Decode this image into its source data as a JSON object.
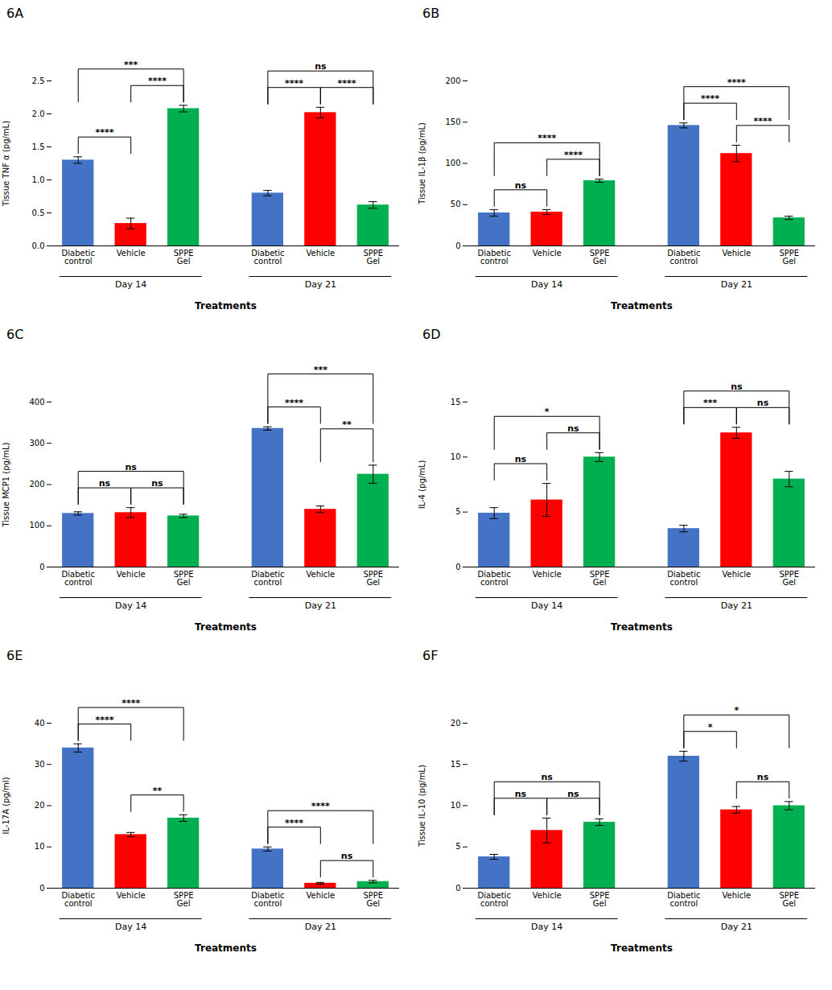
{
  "chart_data": [
    {
      "type": "bar",
      "title": "6A",
      "xlabel": "Treatments",
      "ylabel": "Tissue TNF α (pg/mL)",
      "categories": [
        "Diabetic control",
        "Vehicle",
        "SPPE Gel",
        "Diabetic control",
        "Vehicle",
        "SPPE Gel"
      ],
      "values": [
        1.3,
        0.34,
        2.08,
        0.8,
        2.02,
        0.62
      ],
      "errors": [
        0.05,
        0.08,
        0.05,
        0.04,
        0.08,
        0.05
      ],
      "colors": [
        "#4472C4",
        "#FF0000",
        "#00B050",
        "#4472C4",
        "#FF0000",
        "#00B050"
      ],
      "ylim": [
        0,
        2.5
      ],
      "yticks": [
        {
          "value": 0,
          "label": "0.0"
        },
        {
          "value": 0.5,
          "label": "0.5"
        },
        {
          "value": 1,
          "label": "1.0"
        },
        {
          "value": 1.5,
          "label": "1.5"
        },
        {
          "value": 2,
          "label": "2.0"
        },
        {
          "value": 2.5,
          "label": "2.5"
        }
      ],
      "grid": false,
      "groups": [
        {
          "label": "Day 14",
          "start": 0,
          "end": 2
        },
        {
          "label": "Day 21",
          "start": 3,
          "end": 5
        }
      ],
      "significance": [
        {
          "start": 0,
          "end": 1,
          "level": 1,
          "label": "****"
        },
        {
          "start": 1,
          "end": 2,
          "level": 1,
          "label": "****"
        },
        {
          "start": 0,
          "end": 2,
          "level": 2,
          "label": "***"
        },
        {
          "start": 3,
          "end": 4,
          "level": 1,
          "label": "****"
        },
        {
          "start": 4,
          "end": 5,
          "level": 1,
          "label": "****"
        },
        {
          "start": 3,
          "end": 5,
          "level": 2,
          "label": "ns"
        }
      ]
    },
    {
      "type": "bar",
      "title": "6B",
      "xlabel": "Treatments",
      "ylabel": "Tissue IL-1β (pg/mL)",
      "categories": [
        "Diabetic control",
        "Vehicle",
        "SPPE Gel",
        "Diabetic control",
        "Vehicle",
        "SPPE Gel"
      ],
      "values": [
        40,
        41,
        79,
        146,
        112,
        34
      ],
      "errors": [
        4,
        3,
        2,
        3,
        10,
        2
      ],
      "colors": [
        "#4472C4",
        "#FF0000",
        "#00B050",
        "#4472C4",
        "#FF0000",
        "#00B050"
      ],
      "ylim": [
        0,
        200
      ],
      "yticks": [
        0,
        50,
        100,
        150,
        200
      ],
      "grid": false,
      "groups": [
        {
          "label": "Day 14",
          "start": 0,
          "end": 2
        },
        {
          "label": "Day 21",
          "start": 3,
          "end": 5
        }
      ],
      "significance": [
        {
          "start": 0,
          "end": 1,
          "level": 1,
          "label": "ns"
        },
        {
          "start": 1,
          "end": 2,
          "level": 1,
          "label": "****"
        },
        {
          "start": 0,
          "end": 2,
          "level": 2,
          "label": "****"
        },
        {
          "start": 3,
          "end": 4,
          "level": 1,
          "label": "****"
        },
        {
          "start": 4,
          "end": 5,
          "level": 1,
          "label": "****"
        },
        {
          "start": 3,
          "end": 5,
          "level": 2,
          "label": "****"
        }
      ]
    },
    {
      "type": "bar",
      "title": "6C",
      "xlabel": "Treatments",
      "ylabel": "Tissue MCP1 (pg/mL)",
      "categories": [
        "Diabetic control",
        "Vehicle",
        "SPPE Gel",
        "Diabetic control",
        "Vehicle",
        "SPPE Gel"
      ],
      "values": [
        130,
        132,
        124,
        336,
        140,
        225
      ],
      "errors": [
        4,
        12,
        4,
        4,
        8,
        22
      ],
      "colors": [
        "#4472C4",
        "#FF0000",
        "#00B050",
        "#4472C4",
        "#FF0000",
        "#00B050"
      ],
      "ylim": [
        0,
        400
      ],
      "yticks": [
        0,
        100,
        200,
        300,
        400
      ],
      "grid": false,
      "groups": [
        {
          "label": "Day 14",
          "start": 0,
          "end": 2
        },
        {
          "label": "Day 21",
          "start": 3,
          "end": 5
        }
      ],
      "significance": [
        {
          "start": 0,
          "end": 1,
          "level": 1,
          "label": "ns"
        },
        {
          "start": 1,
          "end": 2,
          "level": 1,
          "label": "ns"
        },
        {
          "start": 0,
          "end": 2,
          "level": 2,
          "label": "ns"
        },
        {
          "start": 3,
          "end": 4,
          "level": 1,
          "label": "****"
        },
        {
          "start": 4,
          "end": 5,
          "level": 2,
          "label": "**"
        },
        {
          "start": 3,
          "end": 5,
          "level": 3,
          "label": "***"
        }
      ]
    },
    {
      "type": "bar",
      "title": "6D",
      "xlabel": "Treatments",
      "ylabel": "IL-4 (pg/mL)",
      "categories": [
        "Diabetic control",
        "Vehicle",
        "SPPE Gel",
        "Diabetic control",
        "Vehicle",
        "SPPE Gel"
      ],
      "values": [
        4.9,
        6.1,
        10.0,
        3.5,
        12.2,
        8.0
      ],
      "errors": [
        0.5,
        1.5,
        0.4,
        0.3,
        0.5,
        0.7
      ],
      "colors": [
        "#4472C4",
        "#FF0000",
        "#00B050",
        "#4472C4",
        "#FF0000",
        "#00B050"
      ],
      "ylim": [
        0,
        15
      ],
      "yticks": [
        0,
        5,
        10,
        15
      ],
      "grid": false,
      "groups": [
        {
          "label": "Day 14",
          "start": 0,
          "end": 2
        },
        {
          "label": "Day 21",
          "start": 3,
          "end": 5
        }
      ],
      "significance": [
        {
          "start": 0,
          "end": 1,
          "level": 1,
          "label": "ns"
        },
        {
          "start": 1,
          "end": 2,
          "level": 1,
          "label": "ns"
        },
        {
          "start": 0,
          "end": 2,
          "level": 2,
          "label": "*"
        },
        {
          "start": 3,
          "end": 4,
          "level": 1,
          "label": "***"
        },
        {
          "start": 4,
          "end": 5,
          "level": 1,
          "label": "ns"
        },
        {
          "start": 3,
          "end": 5,
          "level": 2,
          "label": "ns"
        }
      ]
    },
    {
      "type": "bar",
      "title": "6E",
      "xlabel": "Treatments",
      "ylabel": "IL-17A (pg/ml)",
      "categories": [
        "Diabetic control",
        "Vehicle",
        "SPPE Gel",
        "Diabetic control",
        "Vehicle",
        "SPPE Gel"
      ],
      "values": [
        34,
        13,
        17,
        9.5,
        1.2,
        1.6
      ],
      "errors": [
        1.0,
        0.5,
        0.8,
        0.5,
        0.2,
        0.3
      ],
      "colors": [
        "#4472C4",
        "#FF0000",
        "#00B050",
        "#4472C4",
        "#FF0000",
        "#00B050"
      ],
      "ylim": [
        0,
        40
      ],
      "yticks": [
        0,
        10,
        20,
        30,
        40
      ],
      "grid": false,
      "groups": [
        {
          "label": "Day 14",
          "start": 0,
          "end": 2
        },
        {
          "label": "Day 21",
          "start": 3,
          "end": 5
        }
      ],
      "significance": [
        {
          "start": 0,
          "end": 1,
          "level": 1,
          "label": "****"
        },
        {
          "start": 1,
          "end": 2,
          "level": 1,
          "label": "**"
        },
        {
          "start": 0,
          "end": 2,
          "level": 2,
          "label": "****"
        },
        {
          "start": 3,
          "end": 4,
          "level": 1,
          "label": "****"
        },
        {
          "start": 4,
          "end": 5,
          "level": 1,
          "label": "ns"
        },
        {
          "start": 3,
          "end": 5,
          "level": 2,
          "label": "****"
        }
      ]
    },
    {
      "type": "bar",
      "title": "6F",
      "xlabel": "Treatments",
      "ylabel": "Tissue IL-10 (pg/mL)",
      "categories": [
        "Diabetic control",
        "Vehicle",
        "SPPE Gel",
        "Diabetic control",
        "Vehicle",
        "SPPE Gel"
      ],
      "values": [
        3.8,
        7.0,
        8.0,
        16.0,
        9.5,
        10.0
      ],
      "errors": [
        0.3,
        1.5,
        0.4,
        0.6,
        0.4,
        0.5
      ],
      "colors": [
        "#4472C4",
        "#FF0000",
        "#00B050",
        "#4472C4",
        "#FF0000",
        "#00B050"
      ],
      "ylim": [
        0,
        20
      ],
      "yticks": [
        0,
        5,
        10,
        15,
        20
      ],
      "grid": false,
      "groups": [
        {
          "label": "Day 14",
          "start": 0,
          "end": 2
        },
        {
          "label": "Day 21",
          "start": 3,
          "end": 5
        }
      ],
      "significance": [
        {
          "start": 0,
          "end": 1,
          "level": 1,
          "label": "ns"
        },
        {
          "start": 1,
          "end": 2,
          "level": 1,
          "label": "ns"
        },
        {
          "start": 0,
          "end": 2,
          "level": 2,
          "label": "ns"
        },
        {
          "start": 3,
          "end": 4,
          "level": 1,
          "label": "*"
        },
        {
          "start": 4,
          "end": 5,
          "level": 1,
          "label": "ns"
        },
        {
          "start": 3,
          "end": 5,
          "level": 2,
          "label": "*"
        }
      ]
    }
  ]
}
